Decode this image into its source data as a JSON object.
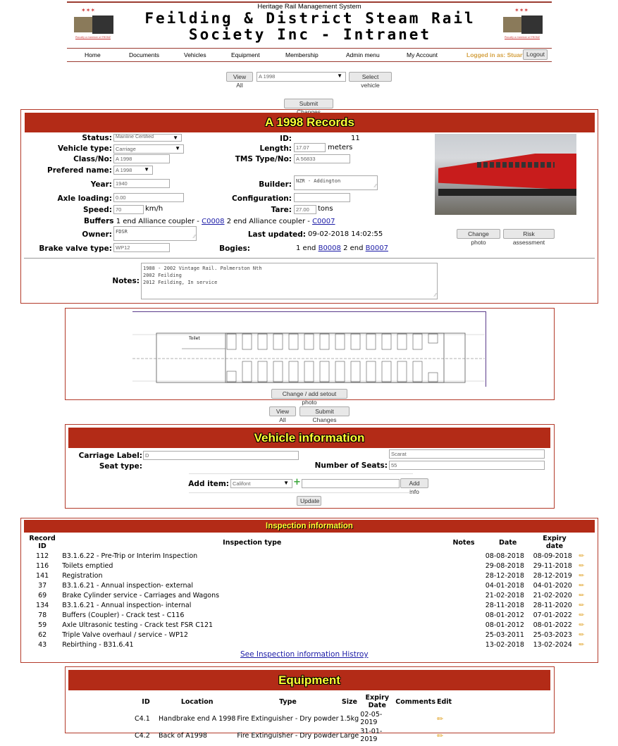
{
  "header": {
    "system": "Heritage Rail Management System",
    "title_line1": "Feilding & District Steam Rail",
    "title_line2": "Society Inc - Intranet",
    "logo_caption": "Proudly a member of FRONZ"
  },
  "nav": {
    "items": [
      "Home",
      "Documents",
      "Vehicles",
      "Equipment",
      "Membership",
      "Admin menu",
      "My Account"
    ],
    "logged_in": "Logged in as: Stuart",
    "logout": "Logout"
  },
  "selector": {
    "view_all": "View All",
    "vehicle": "A 1998",
    "select_vehicle": "Select vehicle",
    "submit": "Submit Changes"
  },
  "records": {
    "title": "A 1998 Records",
    "status_label": "Status:",
    "status": "Mainline Certified",
    "type_label": "Vehicle type:",
    "type": "Carriage",
    "class_label": "Class/No:",
    "class": "A 1998",
    "pref_label": "Prefered name:",
    "pref": "A 1998",
    "year_label": "Year:",
    "year": "1940",
    "axle_label": "Axle loading:",
    "axle": "0.00",
    "speed_label": "Speed:",
    "speed": "70",
    "speed_unit": "km/h",
    "buffers_label": "Buffers",
    "buffers_1": "1 end Alliance coupler -",
    "buffers_1_link": "C0008",
    "buffers_2": "2 end Alliance coupler -",
    "buffers_2_link": "C0007",
    "owner_label": "Owner:",
    "owner": "FDSR",
    "brake_label": "Brake valve type:",
    "brake": "WP12",
    "id_label": "ID:",
    "id": "11",
    "length_label": "Length:",
    "length": "17.07",
    "length_unit": "meters",
    "tms_label": "TMS Type/No:",
    "tms": "A 56833",
    "builder_label": "Builder:",
    "builder": "NZR - Addington",
    "config_label": "Configuration:",
    "config": "",
    "tare_label": "Tare:",
    "tare": "27.00",
    "tare_unit": "tons",
    "updated_label": "Last updated:",
    "updated": "09-02-2018 14:02:55",
    "bogies_label": "Bogies:",
    "bogies_1": "1 end",
    "bogies_1_link": "B0008",
    "bogies_2": "2 end",
    "bogies_2_link": "B0007",
    "change_photo": "Change photo",
    "risk": "Risk assessment",
    "notes_label": "Notes:",
    "notes": "1988 - 2002 Vintage Rail. Palmerston Nth\n2002 Feilding\n2012 Feilding, In service"
  },
  "setout": {
    "toilet": "Toilet",
    "change": "Change / add setout photo",
    "view_all": "View All",
    "submit": "Submit Changes"
  },
  "vehicle_info": {
    "title": "Vehicle information",
    "carriage_label": "Carriage Label:",
    "carriage": "D",
    "seat_type_label": "Seat type:",
    "seat_type": "Scarat",
    "seats_label": "Number of Seats:",
    "seats": "55",
    "add_item_label": "Add item:",
    "add_item": "Califont",
    "add_info": "Add info",
    "update": "Update"
  },
  "inspection": {
    "title": "Inspection information",
    "columns": [
      "Record ID",
      "Inspection type",
      "Notes",
      "Date",
      "Expiry date"
    ],
    "rows": [
      {
        "id": "112",
        "type": "B3.1.6.22 - Pre-Trip or Interim Inspection",
        "notes": "",
        "date": "08-08-2018",
        "expiry": "08-09-2018"
      },
      {
        "id": "116",
        "type": "Toilets emptied",
        "notes": "",
        "date": "29-08-2018",
        "expiry": "29-11-2018"
      },
      {
        "id": "141",
        "type": "Registration",
        "notes": "",
        "date": "28-12-2018",
        "expiry": "28-12-2019"
      },
      {
        "id": "37",
        "type": "B3.1.6.21 - Annual inspection- external",
        "notes": "",
        "date": "04-01-2018",
        "expiry": "04-01-2020"
      },
      {
        "id": "69",
        "type": "Brake Cylinder service - Carriages and Wagons",
        "notes": "",
        "date": "21-02-2018",
        "expiry": "21-02-2020"
      },
      {
        "id": "134",
        "type": "B3.1.6.21 - Annual inspection- internal",
        "notes": "",
        "date": "28-11-2018",
        "expiry": "28-11-2020"
      },
      {
        "id": "78",
        "type": "Buffers (Coupler) - Crack test - C116",
        "notes": "",
        "date": "08-01-2012",
        "expiry": "07-01-2022"
      },
      {
        "id": "59",
        "type": "Axle Ultrasonic testing - Crack test FSR C121",
        "notes": "",
        "date": "08-01-2012",
        "expiry": "08-01-2022"
      },
      {
        "id": "62",
        "type": "Triple Valve overhaul / service - WP12",
        "notes": "",
        "date": "25-03-2011",
        "expiry": "25-03-2023"
      },
      {
        "id": "43",
        "type": "Rebirthing - B31.6.41",
        "notes": "",
        "date": "13-02-2018",
        "expiry": "13-02-2024"
      }
    ],
    "history_link": "See Inspection information Histroy"
  },
  "equipment": {
    "title": "Equipment",
    "columns": [
      "ID",
      "Location",
      "Type",
      "Size",
      "Expiry Date",
      "Comments",
      "Edit"
    ],
    "rows": [
      {
        "id": "C4.1",
        "location": "Handbrake end A 1998",
        "type": "Fire Extinguisher - Dry powder",
        "size": "1.5kg",
        "expiry": "02-05-2019",
        "comments": ""
      },
      {
        "id": "C4.2",
        "location": "Back of A1998",
        "type": "Fire Extinguisher - Dry powder",
        "size": "Large",
        "expiry": "31-01-2019",
        "comments": ""
      }
    ]
  },
  "colors": {
    "brand_red": "#b32b17",
    "title_yellow": "#ffff33",
    "logged_in": "#d4a040"
  }
}
